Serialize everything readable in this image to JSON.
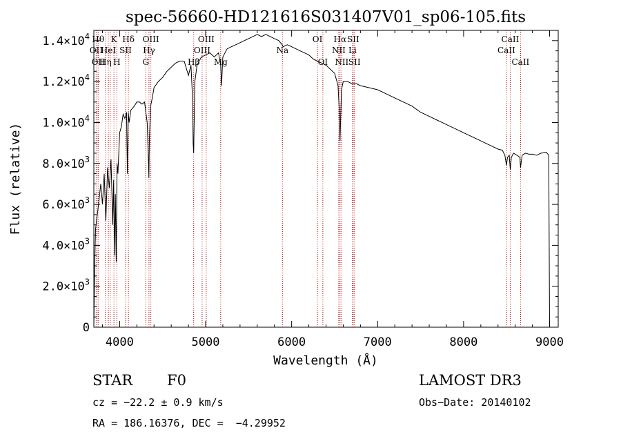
{
  "chart_data": {
    "type": "line",
    "title": "spec-56660-HD121616S031407V01_sp06-105.fits",
    "xlabel": "Wavelength (Å)",
    "ylabel": "Flux (relative)",
    "xlim": [
      3700,
      9100
    ],
    "ylim": [
      0,
      14500
    ],
    "xticks": [
      {
        "value": 4000,
        "label": "4000"
      },
      {
        "value": 5000,
        "label": "5000"
      },
      {
        "value": 6000,
        "label": "6000"
      },
      {
        "value": 7000,
        "label": "7000"
      },
      {
        "value": 8000,
        "label": "8000"
      },
      {
        "value": 9000,
        "label": "9000"
      }
    ],
    "yticks": [
      {
        "value": 0,
        "mant": "0",
        "exp": ""
      },
      {
        "value": 2000,
        "mant": "2.0×10",
        "exp": "3"
      },
      {
        "value": 4000,
        "mant": "4.0×10",
        "exp": "3"
      },
      {
        "value": 6000,
        "mant": "6.0×10",
        "exp": "3"
      },
      {
        "value": 8000,
        "mant": "8.0×10",
        "exp": "3"
      },
      {
        "value": 10000,
        "mant": "1.0×10",
        "exp": "4"
      },
      {
        "value": 12000,
        "mant": "1.2×10",
        "exp": "4"
      },
      {
        "value": 14000,
        "mant": "1.4×10",
        "exp": "4"
      }
    ],
    "spectrum": {
      "name": "flux",
      "x": [
        3700,
        3710,
        3720,
        3740,
        3760,
        3780,
        3800,
        3820,
        3840,
        3860,
        3880,
        3900,
        3920,
        3930,
        3940,
        3950,
        3960,
        3970,
        3980,
        4000,
        4020,
        4040,
        4060,
        4080,
        4090,
        4100,
        4110,
        4130,
        4150,
        4170,
        4200,
        4230,
        4260,
        4290,
        4320,
        4335,
        4340,
        4345,
        4360,
        4380,
        4400,
        4450,
        4500,
        4550,
        4600,
        4650,
        4700,
        4750,
        4800,
        4830,
        4850,
        4855,
        4861,
        4866,
        4875,
        4900,
        4950,
        5000,
        5050,
        5100,
        5150,
        5175,
        5185,
        5200,
        5250,
        5300,
        5350,
        5400,
        5450,
        5500,
        5550,
        5600,
        5650,
        5700,
        5750,
        5800,
        5850,
        5890,
        5900,
        5950,
        6000,
        6050,
        6100,
        6150,
        6200,
        6250,
        6300,
        6350,
        6400,
        6450,
        6500,
        6540,
        6555,
        6563,
        6570,
        6580,
        6600,
        6650,
        6700,
        6750,
        6800,
        6900,
        7000,
        7100,
        7200,
        7300,
        7400,
        7500,
        7600,
        7700,
        7800,
        7900,
        8000,
        8100,
        8200,
        8300,
        8400,
        8450,
        8480,
        8498,
        8510,
        8530,
        8542,
        8555,
        8580,
        8620,
        8655,
        8662,
        8680,
        8720,
        8760,
        8800,
        8850,
        8900,
        8960,
        8990,
        9000
      ],
      "y": [
        0,
        3000,
        4800,
        5500,
        6200,
        7000,
        6000,
        7500,
        5200,
        7800,
        6800,
        8200,
        5000,
        7200,
        3500,
        6500,
        3200,
        8000,
        7500,
        9500,
        9800,
        10400,
        10200,
        10500,
        7500,
        10500,
        10000,
        10600,
        10700,
        10800,
        11000,
        11000,
        10900,
        11000,
        10000,
        8200,
        7300,
        9000,
        10800,
        11200,
        11700,
        12000,
        12200,
        12500,
        12700,
        12900,
        13000,
        13000,
        12300,
        12800,
        11000,
        9000,
        8500,
        9800,
        12000,
        12800,
        13200,
        13300,
        13400,
        13200,
        13400,
        12800,
        11800,
        13200,
        13600,
        13700,
        13800,
        13900,
        14000,
        14100,
        14200,
        14300,
        14200,
        14300,
        14200,
        14100,
        14000,
        13800,
        13700,
        13800,
        13700,
        13600,
        13500,
        13400,
        13300,
        13100,
        13000,
        12900,
        12800,
        12600,
        12400,
        11800,
        10500,
        9100,
        10200,
        11600,
        12000,
        12000,
        11900,
        11900,
        11800,
        11700,
        11600,
        11400,
        11200,
        11000,
        10800,
        10500,
        10300,
        10100,
        9900,
        9700,
        9500,
        9300,
        9100,
        8900,
        8700,
        8650,
        8400,
        7900,
        8300,
        8400,
        7700,
        8300,
        8500,
        8400,
        8300,
        7800,
        8400,
        8500,
        8450,
        8450,
        8400,
        8500,
        8550,
        8400,
        0
      ]
    },
    "lines": [
      {
        "wl": 3727,
        "label": "OII",
        "row": 2
      },
      {
        "wl": 3750,
        "label": "Hθ",
        "row": 1
      },
      {
        "wl": 3750,
        "label": "OII",
        "row": 3
      },
      {
        "wl": 3835,
        "label": "Hη",
        "row": 3
      },
      {
        "wl": 3869,
        "label": "HeI",
        "row": 2
      },
      {
        "wl": 3889,
        "label": "",
        "row": 0
      },
      {
        "wl": 3934,
        "label": "K",
        "row": 1
      },
      {
        "wl": 3968,
        "label": "H",
        "row": 3
      },
      {
        "wl": 4069,
        "label": "SII",
        "row": 2
      },
      {
        "wl": 4102,
        "label": "Hδ",
        "row": 1
      },
      {
        "wl": 4304,
        "label": "G",
        "row": 3
      },
      {
        "wl": 4341,
        "label": "Hγ",
        "row": 2
      },
      {
        "wl": 4363,
        "label": "OIII",
        "row": 1
      },
      {
        "wl": 4861,
        "label": "Hβ",
        "row": 3
      },
      {
        "wl": 4959,
        "label": "OIII",
        "row": 2
      },
      {
        "wl": 5007,
        "label": "OIII",
        "row": 1
      },
      {
        "wl": 5175,
        "label": "Mg",
        "row": 3
      },
      {
        "wl": 5893,
        "label": "Na",
        "row": 2
      },
      {
        "wl": 6300,
        "label": "OI",
        "row": 1
      },
      {
        "wl": 6363,
        "label": "OI",
        "row": 3
      },
      {
        "wl": 6548,
        "label": "NII",
        "row": 2
      },
      {
        "wl": 6563,
        "label": "Hα",
        "row": 1
      },
      {
        "wl": 6583,
        "label": "NII",
        "row": 3
      },
      {
        "wl": 6708,
        "label": "Li",
        "row": 2
      },
      {
        "wl": 6716,
        "label": "SII",
        "row": 1
      },
      {
        "wl": 6731,
        "label": "SII",
        "row": 3
      },
      {
        "wl": 8498,
        "label": "CaII",
        "row": 2
      },
      {
        "wl": 8542,
        "label": "CaII",
        "row": 1
      },
      {
        "wl": 8662,
        "label": "CaII",
        "row": 3
      }
    ]
  },
  "footer": {
    "class_label": "STAR",
    "subclass": "F0",
    "survey": "LAMOST DR3",
    "cz": "cz = −22.2 ± 0.9 km/s",
    "obs_date": "Obs−Date: 20140102",
    "radec": "RA = 186.16376, DEC =  −4.29952"
  }
}
